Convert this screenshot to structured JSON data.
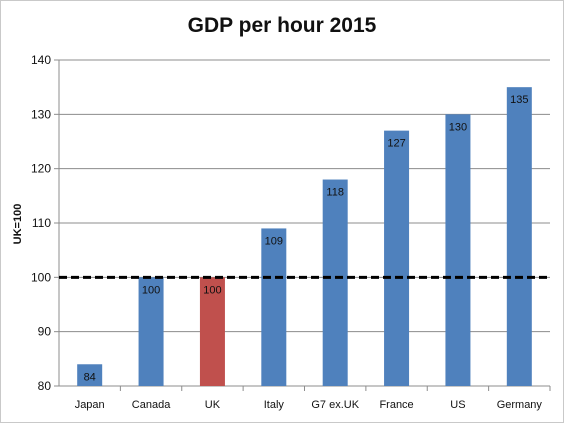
{
  "chart_data": {
    "type": "bar",
    "title": "GDP per hour 2015",
    "xlabel": "",
    "ylabel": "UK=100",
    "ylim": [
      80,
      140
    ],
    "yticks": [
      80,
      90,
      100,
      110,
      120,
      130,
      140
    ],
    "categories": [
      "Japan",
      "Canada",
      "UK",
      "Italy",
      "G7 ex.UK",
      "France",
      "US",
      "Germany"
    ],
    "values": [
      84,
      100,
      100,
      109,
      118,
      127,
      130,
      135
    ],
    "data_labels": [
      "84",
      "100",
      "100",
      "109",
      "118",
      "127",
      "130",
      "135"
    ],
    "bar_colors": [
      "#4f81bd",
      "#4f81bd",
      "#c0504d",
      "#4f81bd",
      "#4f81bd",
      "#4f81bd",
      "#4f81bd",
      "#4f81bd"
    ],
    "reference_line": {
      "value": 100,
      "style": "dashed",
      "color": "#000000"
    },
    "grid": true,
    "legend": "none"
  }
}
